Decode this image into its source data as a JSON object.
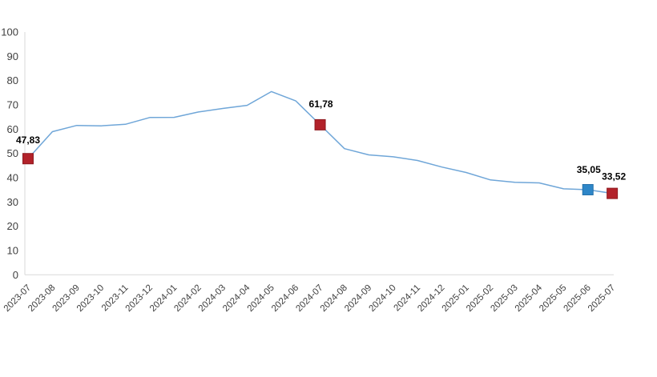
{
  "page": {
    "background": "#ffffff"
  },
  "chart_data": {
    "type": "line",
    "title": "",
    "xlabel": "",
    "ylabel": "",
    "x": [
      "2023-07",
      "2023-08",
      "2023-09",
      "2023-10",
      "2023-11",
      "2023-12",
      "2024-01",
      "2024-02",
      "2024-03",
      "2024-04",
      "2024-05",
      "2024-06",
      "2024-07",
      "2024-08",
      "2024-09",
      "2024-10",
      "2024-11",
      "2024-12",
      "2025-01",
      "2025-02",
      "2025-03",
      "2025-04",
      "2025-05",
      "2025-06",
      "2025-07"
    ],
    "values": [
      47.83,
      58.94,
      61.53,
      61.36,
      61.98,
      64.77,
      64.86,
      67.07,
      68.5,
      69.8,
      75.45,
      71.6,
      61.78,
      51.97,
      49.38,
      48.58,
      47.09,
      44.38,
      42.12,
      39.05,
      38.1,
      37.86,
      35.41,
      35.05,
      33.52
    ],
    "ylim": [
      0,
      100
    ],
    "ytick_step": 10,
    "yticks": [
      0,
      10,
      20,
      30,
      40,
      50,
      60,
      70,
      80,
      90,
      100
    ],
    "grid": "off",
    "legend": "none",
    "line_color": "#6fa6d8",
    "axis_color": "#d9d9d9",
    "tick_label_color": "#404040",
    "data_label_color": "#000000",
    "labeled_points": [
      {
        "x": "2023-07",
        "value": 47.83,
        "label": "47,83",
        "marker_color": "#b2222a",
        "marker_stroke": "#8f1b21"
      },
      {
        "x": "2024-07",
        "value": 61.78,
        "label": "61,78",
        "marker_color": "#b2222a",
        "marker_stroke": "#8f1b21"
      },
      {
        "x": "2025-06",
        "value": 35.05,
        "label": "35,05",
        "marker_color": "#2e86c8",
        "marker_stroke": "#2470aa"
      },
      {
        "x": "2025-07",
        "value": 33.52,
        "label": "33,52",
        "marker_color": "#b2222a",
        "marker_stroke": "#8f1b21"
      }
    ]
  }
}
